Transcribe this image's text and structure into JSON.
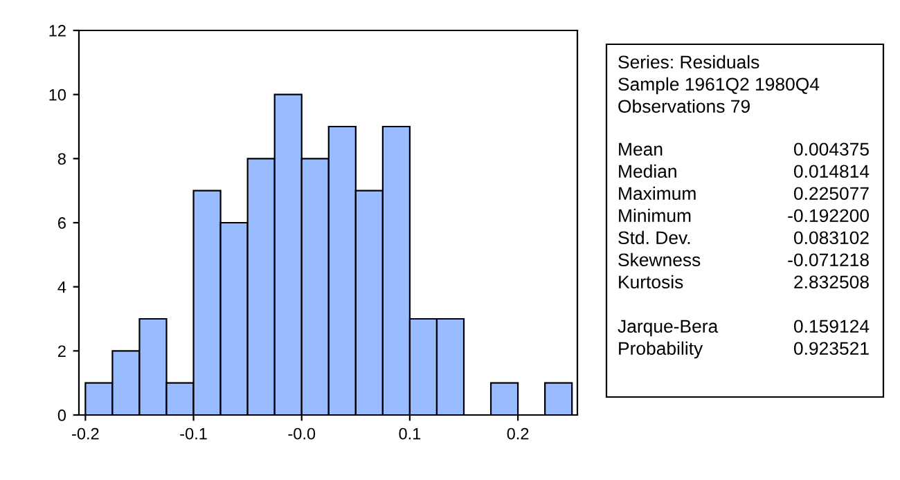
{
  "chart_data": [
    {
      "type": "histogram",
      "bins": [
        -0.2,
        -0.175,
        -0.15,
        -0.125,
        -0.1,
        -0.075,
        -0.05,
        -0.025,
        0,
        0.025,
        0.05,
        0.075,
        0.1,
        0.125,
        0.15,
        0.175,
        0.2,
        0.225,
        0.25
      ],
      "values": [
        1,
        2,
        3,
        1,
        7,
        6,
        8,
        10,
        8,
        9,
        7,
        9,
        3,
        3,
        0,
        1,
        0,
        1
      ],
      "color": "#99bbff",
      "xlim": [
        -0.206,
        0.255
      ],
      "ylim": [
        0,
        12
      ],
      "xticks": [
        -0.2,
        -0.1,
        {
          "value": 0,
          "label": "-0.0"
        },
        0.1,
        0.2
      ],
      "yticks": [
        0,
        2,
        4,
        6,
        8,
        10,
        12
      ],
      "grid": false
    },
    {
      "type": "other",
      "annotations": [
        "Series: Residuals",
        "Sample 1961Q2 1980Q4",
        "Observations 79",
        "Mean",
        "0.004375",
        "Median",
        "0.014814",
        "Maximum",
        "0.225077",
        "Minimum",
        "-0.192200",
        "Std. Dev.",
        "0.083102",
        "Skewness",
        "-0.071218",
        "Kurtosis",
        "2.832508",
        "Jarque-Bera",
        "0.159124",
        "Probability",
        "0.923521"
      ]
    }
  ]
}
